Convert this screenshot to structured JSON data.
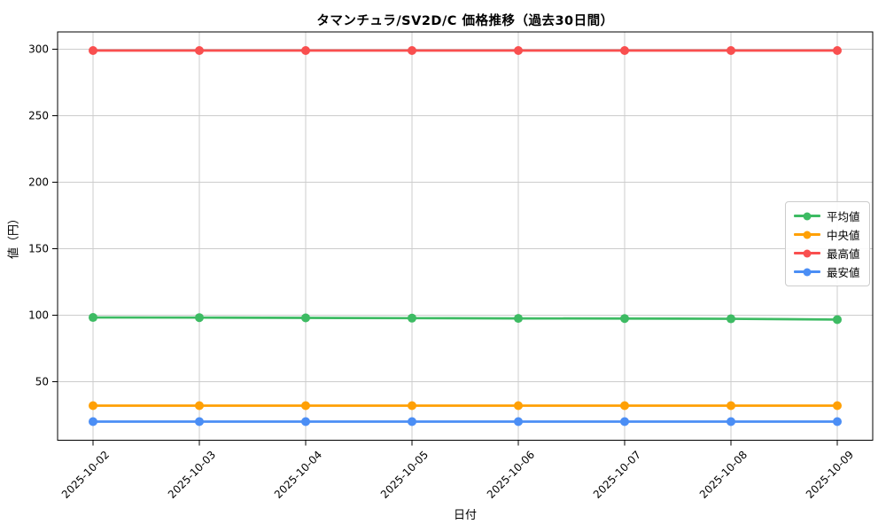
{
  "figure": {
    "background_color": "#ffffff",
    "grid_color": "#cccccc",
    "spine_color": "#000000",
    "tick_color": "#333333",
    "text_color": "#000000"
  },
  "chart_data": {
    "type": "line",
    "title": "タマンチュラ/SV2D/C 価格推移（過去30日間）",
    "xlabel": "日付",
    "ylabel": "値（円）",
    "categories": [
      "2025-10-02",
      "2025-10-03",
      "2025-10-04",
      "2025-10-05",
      "2025-10-06",
      "2025-10-07",
      "2025-10-08",
      "2025-10-09"
    ],
    "yticks": [
      50,
      100,
      150,
      200,
      250,
      300
    ],
    "ylim": [
      6,
      313
    ],
    "grid": true,
    "legend_position": "center right",
    "series": [
      {
        "key": "avg",
        "name": "平均値",
        "color": "#3dbb63",
        "values": [
          98.3,
          98.2,
          98.0,
          97.8,
          97.6,
          97.5,
          97.3,
          96.7
        ]
      },
      {
        "key": "median",
        "name": "中央値",
        "color": "#ffa005",
        "values": [
          32,
          32,
          32,
          32,
          32,
          32,
          32,
          32
        ]
      },
      {
        "key": "max",
        "name": "最高値",
        "color": "#f94f4f",
        "values": [
          299,
          299,
          299,
          299,
          299,
          299,
          299,
          299
        ]
      },
      {
        "key": "min",
        "name": "最安値",
        "color": "#4b8ef5",
        "values": [
          20,
          20,
          20,
          20,
          20,
          20,
          20,
          20
        ]
      }
    ]
  }
}
